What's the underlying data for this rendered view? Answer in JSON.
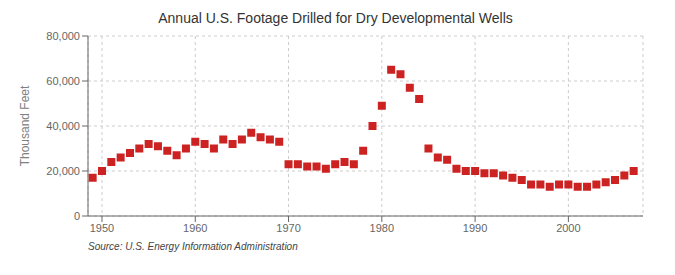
{
  "chart_data": {
    "type": "scatter",
    "title": "Annual U.S. Footage Drilled for Dry Developmental Wells",
    "y_label": "Thousand Feet",
    "annotations": [
      "Source: U.S. Energy Information Administration"
    ],
    "x": [
      1949,
      1950,
      1951,
      1952,
      1953,
      1954,
      1955,
      1956,
      1957,
      1958,
      1959,
      1960,
      1961,
      1962,
      1963,
      1964,
      1965,
      1966,
      1967,
      1968,
      1969,
      1970,
      1971,
      1972,
      1973,
      1974,
      1975,
      1976,
      1977,
      1978,
      1979,
      1980,
      1981,
      1982,
      1983,
      1984,
      1985,
      1986,
      1987,
      1988,
      1989,
      1990,
      1991,
      1992,
      1993,
      1994,
      1995,
      1996,
      1997,
      1998,
      1999,
      2000,
      2001,
      2002,
      2003,
      2004,
      2005,
      2006,
      2007
    ],
    "values": [
      17000,
      20000,
      24000,
      26000,
      28000,
      30000,
      32000,
      31000,
      29000,
      27000,
      30000,
      33000,
      32000,
      30000,
      34000,
      32000,
      34000,
      37000,
      35000,
      34000,
      33000,
      23000,
      23000,
      22000,
      22000,
      21000,
      23000,
      24000,
      23000,
      29000,
      40000,
      49000,
      65000,
      63000,
      57000,
      52000,
      30000,
      26000,
      25000,
      21000,
      20000,
      20000,
      19000,
      19000,
      18000,
      17000,
      16000,
      14000,
      14000,
      13000,
      14000,
      14000,
      13000,
      13000,
      14000,
      15000,
      16000,
      18000,
      20000
    ],
    "color": "#cc2222",
    "marker": "square",
    "xlim": [
      1948.5,
      2008
    ],
    "xticks": [
      1950,
      1960,
      1970,
      1980,
      1990,
      2000
    ],
    "ylim": [
      0,
      80000
    ],
    "yticks": [
      0,
      {
        "value": 20000,
        "label": "20,000"
      },
      {
        "value": 40000,
        "label": "40,000"
      },
      {
        "value": 60000,
        "label": "60,000"
      },
      {
        "value": 80000,
        "label": "80,000"
      }
    ],
    "grid": true
  }
}
